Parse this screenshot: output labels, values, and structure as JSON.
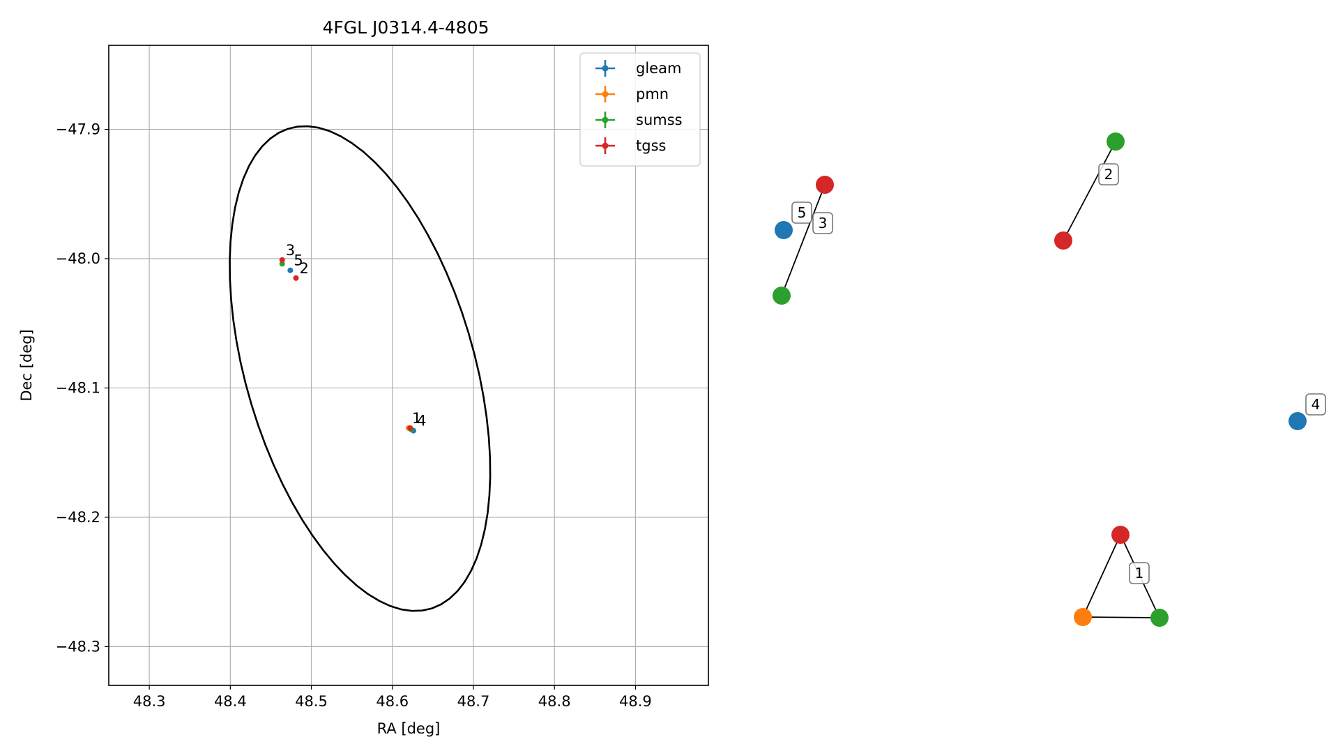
{
  "chart_data": [
    {
      "type": "scatter",
      "title": "4FGL J0314.4-4805",
      "xlabel": "RA [deg]",
      "ylabel": "Dec [deg]",
      "xlim": [
        48.25,
        48.99
      ],
      "ylim": [
        -48.33,
        -47.835
      ],
      "grid": true,
      "legend_position": "top-right",
      "x_ticks": [
        48.3,
        48.4,
        48.5,
        48.6,
        48.7,
        48.8,
        48.9
      ],
      "x_tick_labels": [
        "48.3",
        "48.4",
        "48.5",
        "48.6",
        "48.7",
        "48.8",
        "48.9"
      ],
      "y_ticks": [
        -47.9,
        -48.0,
        -48.1,
        -48.2,
        -48.3
      ],
      "y_tick_labels": [
        "−47.9",
        "−48.0",
        "−48.1",
        "−48.2",
        "−48.3"
      ],
      "series": [
        {
          "name": "gleam",
          "color": "#1f77b4",
          "points": [
            {
              "x": 48.474,
              "y": -48.009
            },
            {
              "x": 48.626,
              "y": -48.133
            }
          ]
        },
        {
          "name": "pmn",
          "color": "#ff7f0e",
          "points": [
            {
              "x": 48.62,
              "y": -48.131
            }
          ]
        },
        {
          "name": "sumss",
          "color": "#2ca02c",
          "points": [
            {
              "x": 48.464,
              "y": -48.004
            },
            {
              "x": 48.623,
              "y": -48.132
            }
          ]
        },
        {
          "name": "tgss",
          "color": "#d62728",
          "points": [
            {
              "x": 48.464,
              "y": -48.001
            },
            {
              "x": 48.481,
              "y": -48.015
            },
            {
              "x": 48.622,
              "y": -48.131
            }
          ]
        }
      ],
      "annotations": [
        {
          "text": "3",
          "x": 48.464,
          "y": -48.001
        },
        {
          "text": "5",
          "x": 48.474,
          "y": -48.009
        },
        {
          "text": "2",
          "x": 48.481,
          "y": -48.015
        },
        {
          "text": "1",
          "x": 48.62,
          "y": -48.131
        },
        {
          "text": "4",
          "x": 48.626,
          "y": -48.133
        }
      ],
      "ellipse": {
        "center_x": 48.56,
        "center_y": -48.085,
        "width": 0.42,
        "height": 0.26,
        "angle_deg": -55,
        "color": "#000000"
      }
    },
    {
      "type": "network",
      "nodes": [
        {
          "id": "gleam-5",
          "catalog": "gleam",
          "color": "#1f77b4",
          "label": "5"
        },
        {
          "id": "tgss-3",
          "catalog": "tgss",
          "color": "#d62728"
        },
        {
          "id": "sumss-3",
          "catalog": "sumss",
          "color": "#2ca02c"
        },
        {
          "id": "sumss-2",
          "catalog": "sumss",
          "color": "#2ca02c"
        },
        {
          "id": "tgss-2",
          "catalog": "tgss",
          "color": "#d62728"
        },
        {
          "id": "gleam-4",
          "catalog": "gleam",
          "color": "#1f77b4",
          "label": "4"
        },
        {
          "id": "tgss-1",
          "catalog": "tgss",
          "color": "#d62728"
        },
        {
          "id": "pmn-1",
          "catalog": "pmn",
          "color": "#ff7f0e"
        },
        {
          "id": "sumss-1",
          "catalog": "sumss",
          "color": "#2ca02c"
        }
      ],
      "edges": [
        {
          "from": "tgss-3",
          "to": "sumss-3",
          "label": "3"
        },
        {
          "from": "sumss-2",
          "to": "tgss-2",
          "label": "2"
        },
        {
          "from": "tgss-1",
          "to": "pmn-1",
          "label": "1"
        },
        {
          "from": "tgss-1",
          "to": "sumss-1"
        },
        {
          "from": "pmn-1",
          "to": "sumss-1"
        }
      ]
    }
  ]
}
